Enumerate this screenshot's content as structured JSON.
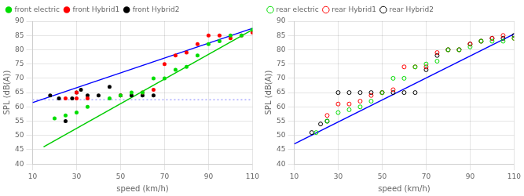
{
  "chart_data": [
    {
      "type": "scatter",
      "xlabel": "speed (km/h)",
      "ylabel": "SPL (dB(A))",
      "xlim": [
        10,
        110
      ],
      "ylim": [
        40,
        90
      ],
      "xticks": [
        10,
        30,
        50,
        70,
        90,
        110
      ],
      "yticks": [
        40,
        45,
        50,
        55,
        60,
        65,
        70,
        75,
        80,
        85,
        90
      ],
      "grid": true,
      "legend": "upper left",
      "series": [
        {
          "name": "front electric",
          "type": "scatter",
          "marker": "circle",
          "color": "#00dd00",
          "x": [
            20,
            25,
            30,
            35,
            45,
            50,
            55,
            60,
            65,
            70,
            75,
            80,
            85,
            90,
            95,
            100,
            105,
            110
          ],
          "values": [
            56,
            57,
            58,
            60,
            63,
            64,
            65,
            65,
            70,
            70,
            73,
            74,
            78,
            82,
            83,
            85,
            85,
            87
          ]
        },
        {
          "name": "front Hybrid1",
          "type": "scatter",
          "marker": "circle",
          "color": "#ff0000",
          "x": [
            25,
            30,
            30,
            35,
            50,
            60,
            65,
            70,
            75,
            80,
            85,
            90,
            95,
            100,
            105,
            110
          ],
          "values": [
            63,
            63,
            65,
            63,
            64,
            65,
            66,
            75,
            78,
            79,
            82,
            85,
            85,
            84,
            85,
            86
          ]
        },
        {
          "name": "front Hybrid2",
          "type": "scatter",
          "marker": "circle",
          "color": "#000000",
          "x": [
            18,
            22,
            25,
            28,
            30,
            32,
            35,
            40,
            45,
            50,
            55,
            60,
            65
          ],
          "values": [
            64,
            63,
            55,
            63,
            65,
            66,
            64,
            64,
            67,
            64,
            64,
            64,
            64
          ]
        },
        {
          "type": "line",
          "line_style": "solid",
          "color": "#00cc00",
          "x": [
            15,
            110
          ],
          "values": [
            46.0,
            87.0
          ]
        },
        {
          "type": "line",
          "line_style": "solid",
          "color": "#0000ff",
          "x": [
            10,
            110
          ],
          "values": [
            61.5,
            87.5
          ]
        },
        {
          "type": "line",
          "line_style": "dotted",
          "color": "#aaaaff",
          "x": [
            10,
            110
          ],
          "values": [
            62.5,
            62.5
          ]
        }
      ]
    },
    {
      "type": "scatter",
      "xlabel": "speed (km/h)",
      "ylabel": "SPL (dB(A))",
      "xlim": [
        10,
        110
      ],
      "ylim": [
        40,
        90
      ],
      "xticks": [
        10,
        30,
        50,
        70,
        90,
        110
      ],
      "yticks": [
        40,
        45,
        50,
        55,
        60,
        65,
        70,
        75,
        80,
        85,
        90
      ],
      "grid": true,
      "legend": "upper left",
      "series": [
        {
          "name": "rear electric",
          "type": "scatter",
          "marker": "open circle",
          "color": "#00dd00",
          "x": [
            20,
            25,
            30,
            35,
            40,
            45,
            50,
            55,
            60,
            65,
            70,
            75,
            80,
            85,
            90,
            95,
            100,
            105,
            110
          ],
          "values": [
            51,
            55,
            58,
            59,
            60,
            62,
            65,
            70,
            70,
            74,
            75,
            76,
            80,
            80,
            81,
            83,
            83,
            83,
            84
          ]
        },
        {
          "name": "rear Hybrid1",
          "type": "scatter",
          "marker": "open circle",
          "color": "#ff0000",
          "x": [
            25,
            30,
            35,
            40,
            45,
            50,
            55,
            60,
            65,
            70,
            75,
            80,
            85,
            90,
            95,
            100,
            105,
            110
          ],
          "values": [
            57,
            61,
            61,
            62,
            64,
            65,
            66,
            74,
            74,
            74,
            79,
            80,
            80,
            82,
            83,
            84,
            85,
            84
          ]
        },
        {
          "name": "rear Hybrid2",
          "type": "scatter",
          "marker": "open circle",
          "color": "#000000",
          "x": [
            18,
            22,
            25,
            30,
            35,
            40,
            45,
            50,
            55,
            60,
            65,
            70,
            75,
            80,
            85,
            90,
            95,
            100,
            105,
            110
          ],
          "values": [
            51,
            54,
            55,
            65,
            65,
            65,
            65,
            65,
            65,
            65,
            65,
            73,
            78,
            80,
            80,
            82,
            83,
            84,
            84,
            85
          ]
        },
        {
          "type": "line",
          "line_style": "solid",
          "color": "#0000ff",
          "x": [
            10,
            110
          ],
          "values": [
            47.0,
            85.5
          ]
        }
      ]
    }
  ]
}
